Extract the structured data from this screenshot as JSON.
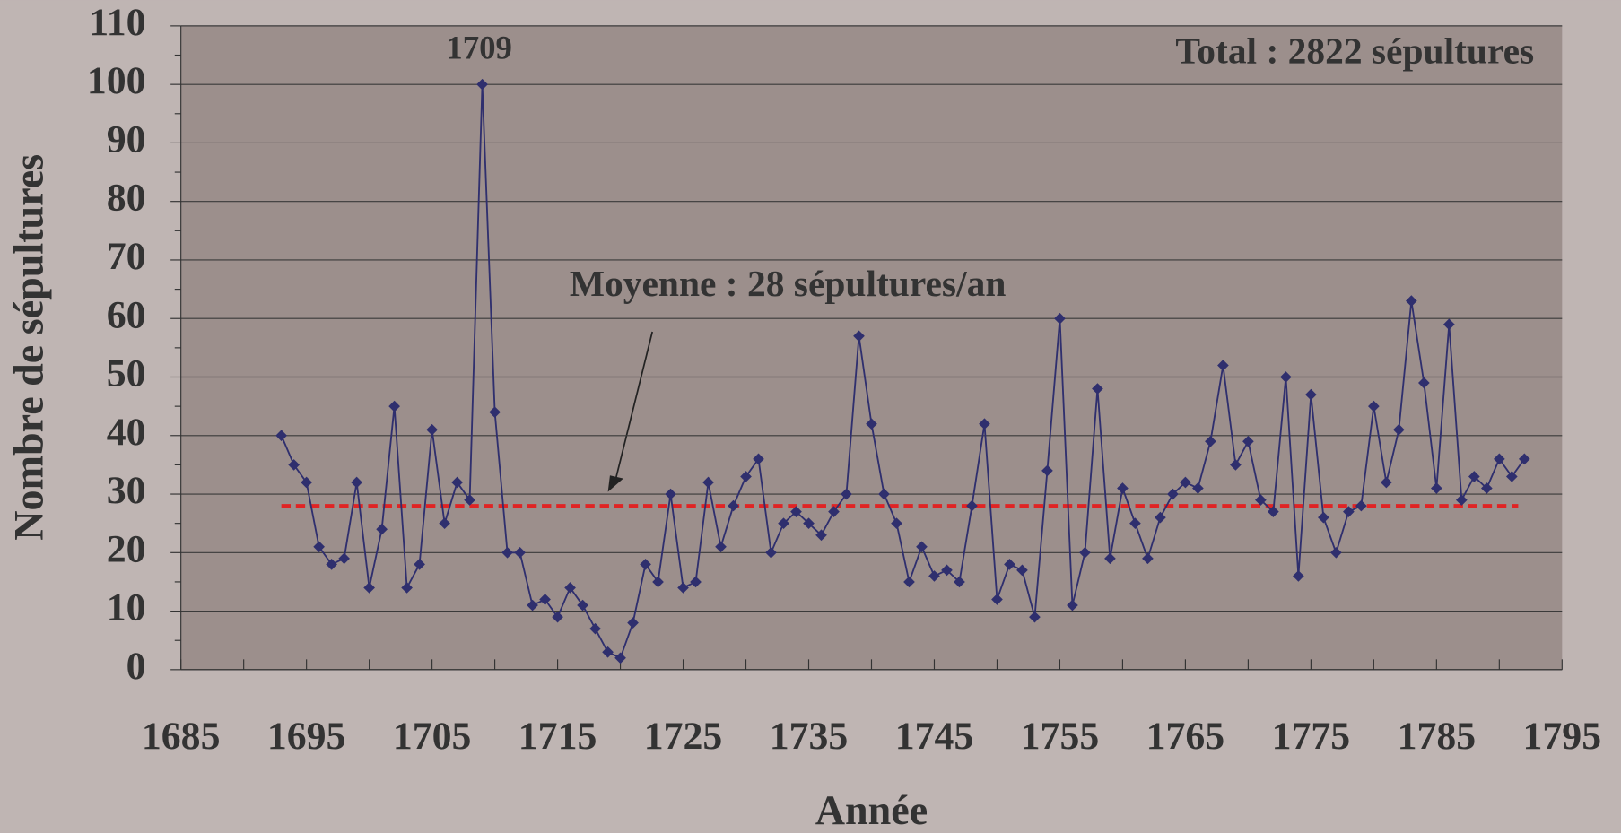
{
  "chart_data": {
    "type": "line",
    "y_label": "Nombre de sépultures",
    "x_label": "Année",
    "annotations": {
      "peak": "1709",
      "total": "Total : 2822 sépultures",
      "mean": "Moyenne : 28 sépultures/an"
    },
    "mean": 28,
    "mean_color": "#e02424",
    "x": [
      1693,
      1694,
      1695,
      1696,
      1697,
      1698,
      1699,
      1700,
      1701,
      1702,
      1703,
      1704,
      1705,
      1706,
      1707,
      1708,
      1709,
      1710,
      1711,
      1712,
      1713,
      1714,
      1715,
      1716,
      1717,
      1718,
      1719,
      1720,
      1721,
      1722,
      1723,
      1724,
      1725,
      1726,
      1727,
      1728,
      1729,
      1730,
      1731,
      1732,
      1733,
      1734,
      1735,
      1736,
      1737,
      1738,
      1739,
      1740,
      1741,
      1742,
      1743,
      1744,
      1745,
      1746,
      1747,
      1748,
      1749,
      1750,
      1751,
      1752,
      1753,
      1754,
      1755,
      1756,
      1757,
      1758,
      1759,
      1760,
      1761,
      1762,
      1763,
      1764,
      1765,
      1766,
      1767,
      1768,
      1769,
      1770,
      1771,
      1772,
      1773,
      1774,
      1775,
      1776,
      1777,
      1778,
      1779,
      1780,
      1781,
      1782,
      1783,
      1784,
      1785,
      1786,
      1787,
      1788,
      1789,
      1790,
      1791,
      1792
    ],
    "series": [
      {
        "color": "#2f2f6e",
        "values": [
          40,
          35,
          32,
          21,
          18,
          19,
          32,
          14,
          24,
          45,
          14,
          18,
          41,
          25,
          32,
          29,
          100,
          44,
          20,
          20,
          11,
          12,
          9,
          14,
          11,
          7,
          3,
          2,
          8,
          18,
          15,
          30,
          14,
          15,
          32,
          21,
          28,
          33,
          36,
          20,
          25,
          27,
          25,
          23,
          27,
          30,
          57,
          42,
          30,
          25,
          15,
          21,
          16,
          17,
          15,
          28,
          42,
          12,
          18,
          17,
          9,
          34,
          60,
          11,
          20,
          48,
          19,
          31,
          25,
          19,
          26,
          30,
          32,
          31,
          39,
          52,
          35,
          39,
          29,
          27,
          50,
          16,
          47,
          26,
          20,
          27,
          28,
          45,
          32,
          41,
          63,
          49,
          31,
          59,
          29,
          33,
          31,
          36,
          33,
          36
        ]
      }
    ],
    "xlim": [
      1685,
      1795
    ],
    "xticks": [
      1685,
      1695,
      1705,
      1715,
      1725,
      1735,
      1745,
      1755,
      1765,
      1775,
      1785,
      1795
    ],
    "ylim": [
      0,
      110
    ],
    "yticks": [
      0,
      10,
      20,
      30,
      40,
      50,
      60,
      70,
      80,
      90,
      100,
      110
    ],
    "grid": true
  }
}
